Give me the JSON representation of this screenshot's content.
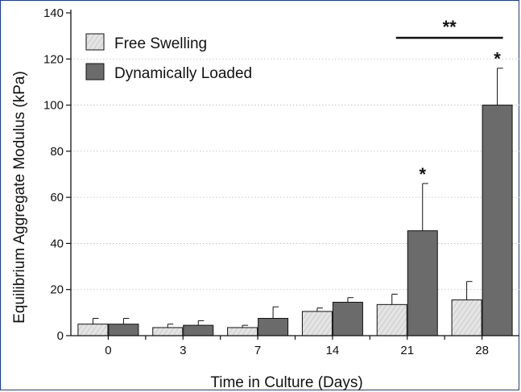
{
  "chart_data": {
    "type": "bar",
    "title": "",
    "xlabel": "Time in Culture (Days)",
    "ylabel": "Equilibrium Aggregate Modulus (kPa)",
    "ylim": [
      0,
      140
    ],
    "yticks": [
      0,
      20,
      40,
      60,
      80,
      100,
      120,
      140
    ],
    "categories": [
      "0",
      "3",
      "7",
      "14",
      "21",
      "28"
    ],
    "series": [
      {
        "name": "Free Swelling",
        "color": "#e2e2e2",
        "pattern": "hatched",
        "values": [
          5,
          3.5,
          3.5,
          10.5,
          13.5,
          15.5
        ],
        "error": [
          2.5,
          1.5,
          1,
          1.5,
          4.5,
          8
        ]
      },
      {
        "name": "Dynamically Loaded",
        "color": "#6b6b6b",
        "pattern": "solid",
        "values": [
          5,
          4.5,
          7.5,
          14.5,
          45.5,
          100
        ],
        "error": [
          2.5,
          2,
          5,
          2,
          20.5,
          16
        ]
      }
    ],
    "annotations": [
      {
        "text": "*",
        "category": "21",
        "series": "Dynamically Loaded"
      },
      {
        "text": "*",
        "category": "28",
        "series": "Dynamically Loaded"
      },
      {
        "text": "**",
        "spans": [
          "21",
          "28"
        ]
      }
    ],
    "legend": "top-left",
    "grid": "horizontal dotted"
  }
}
